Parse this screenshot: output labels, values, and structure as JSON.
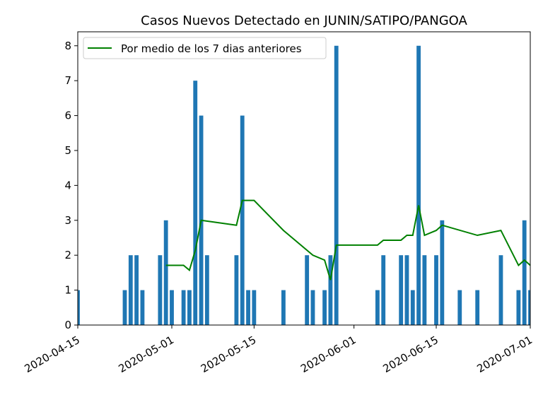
{
  "chart_data": {
    "type": "bar",
    "title": "Casos Nuevos Detectado en JUNIN/SATIPO/PANGOA",
    "xlabel": "",
    "ylabel": "",
    "xlim": [
      "2020-04-15",
      "2020-07-01"
    ],
    "ylim": [
      0,
      8.4
    ],
    "y_ticks": [
      0,
      1,
      2,
      3,
      4,
      5,
      6,
      7,
      8
    ],
    "x_ticks": [
      "2020-04-15",
      "2020-05-01",
      "2020-05-15",
      "2020-06-01",
      "2020-06-15",
      "2020-07-01"
    ],
    "legend": {
      "position": "top-left",
      "entries": [
        "Por medio de los 7 dias anteriores"
      ]
    },
    "grid": false,
    "colors": {
      "bars": "#1f77b4",
      "line": "#008000"
    },
    "series": [
      {
        "kind": "bar",
        "points": [
          {
            "x": "2020-04-15",
            "y": 1
          },
          {
            "x": "2020-04-23",
            "y": 1
          },
          {
            "x": "2020-04-24",
            "y": 2
          },
          {
            "x": "2020-04-25",
            "y": 2
          },
          {
            "x": "2020-04-26",
            "y": 1
          },
          {
            "x": "2020-04-29",
            "y": 2
          },
          {
            "x": "2020-04-30",
            "y": 3
          },
          {
            "x": "2020-05-01",
            "y": 1
          },
          {
            "x": "2020-05-03",
            "y": 1
          },
          {
            "x": "2020-05-04",
            "y": 1
          },
          {
            "x": "2020-05-05",
            "y": 7
          },
          {
            "x": "2020-05-06",
            "y": 6
          },
          {
            "x": "2020-05-07",
            "y": 2
          },
          {
            "x": "2020-05-12",
            "y": 2
          },
          {
            "x": "2020-05-13",
            "y": 6
          },
          {
            "x": "2020-05-14",
            "y": 1
          },
          {
            "x": "2020-05-15",
            "y": 1
          },
          {
            "x": "2020-05-20",
            "y": 1
          },
          {
            "x": "2020-05-24",
            "y": 2
          },
          {
            "x": "2020-05-25",
            "y": 1
          },
          {
            "x": "2020-05-27",
            "y": 1
          },
          {
            "x": "2020-05-28",
            "y": 2
          },
          {
            "x": "2020-05-29",
            "y": 8
          },
          {
            "x": "2020-06-05",
            "y": 1
          },
          {
            "x": "2020-06-06",
            "y": 2
          },
          {
            "x": "2020-06-09",
            "y": 2
          },
          {
            "x": "2020-06-10",
            "y": 2
          },
          {
            "x": "2020-06-11",
            "y": 1
          },
          {
            "x": "2020-06-12",
            "y": 8
          },
          {
            "x": "2020-06-13",
            "y": 2
          },
          {
            "x": "2020-06-15",
            "y": 2
          },
          {
            "x": "2020-06-16",
            "y": 3
          },
          {
            "x": "2020-06-19",
            "y": 1
          },
          {
            "x": "2020-06-22",
            "y": 1
          },
          {
            "x": "2020-06-26",
            "y": 2
          },
          {
            "x": "2020-06-29",
            "y": 1
          },
          {
            "x": "2020-06-30",
            "y": 3
          },
          {
            "x": "2020-07-01",
            "y": 1
          }
        ]
      },
      {
        "name": "Por medio de los 7 dias anteriores",
        "kind": "line",
        "points": [
          {
            "x": "2020-04-30",
            "y": 1.71
          },
          {
            "x": "2020-05-03",
            "y": 1.71
          },
          {
            "x": "2020-05-04",
            "y": 1.57
          },
          {
            "x": "2020-05-05",
            "y": 2.14
          },
          {
            "x": "2020-05-06",
            "y": 3.0
          },
          {
            "x": "2020-05-12",
            "y": 2.86
          },
          {
            "x": "2020-05-13",
            "y": 3.57
          },
          {
            "x": "2020-05-15",
            "y": 3.57
          },
          {
            "x": "2020-05-20",
            "y": 2.71
          },
          {
            "x": "2020-05-25",
            "y": 2.0
          },
          {
            "x": "2020-05-27",
            "y": 1.86
          },
          {
            "x": "2020-05-28",
            "y": 1.29
          },
          {
            "x": "2020-05-29",
            "y": 2.29
          },
          {
            "x": "2020-06-05",
            "y": 2.29
          },
          {
            "x": "2020-06-06",
            "y": 2.43
          },
          {
            "x": "2020-06-09",
            "y": 2.43
          },
          {
            "x": "2020-06-10",
            "y": 2.57
          },
          {
            "x": "2020-06-11",
            "y": 2.57
          },
          {
            "x": "2020-06-12",
            "y": 3.43
          },
          {
            "x": "2020-06-13",
            "y": 2.57
          },
          {
            "x": "2020-06-15",
            "y": 2.71
          },
          {
            "x": "2020-06-16",
            "y": 2.86
          },
          {
            "x": "2020-06-22",
            "y": 2.57
          },
          {
            "x": "2020-06-26",
            "y": 2.71
          },
          {
            "x": "2020-06-29",
            "y": 1.71
          },
          {
            "x": "2020-06-30",
            "y": 1.86
          },
          {
            "x": "2020-07-01",
            "y": 1.71
          }
        ]
      }
    ]
  }
}
